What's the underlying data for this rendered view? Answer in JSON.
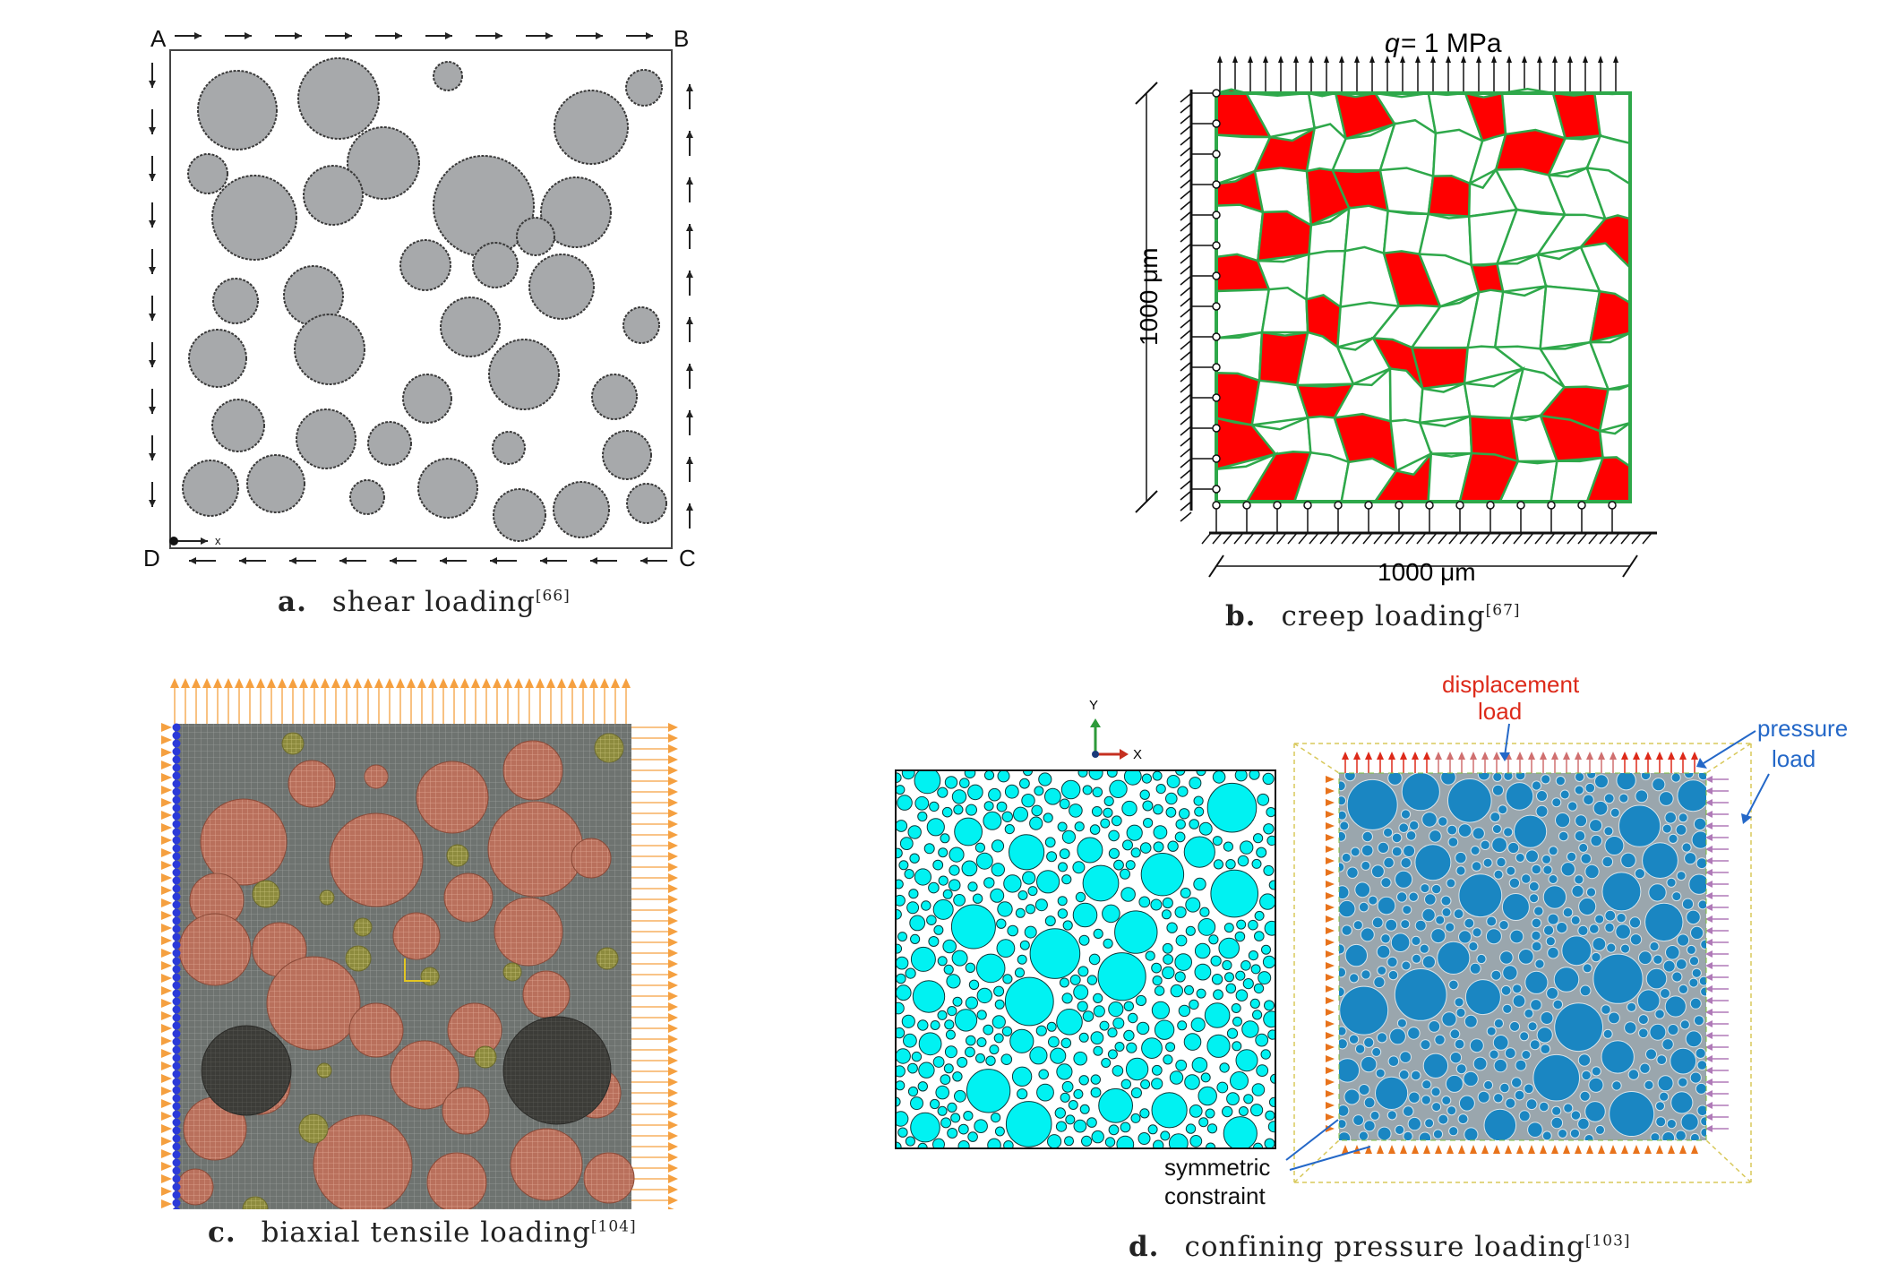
{
  "panel_a": {
    "corners": {
      "A": "A",
      "B": "B",
      "C": "C",
      "D": "D"
    },
    "axis_mark": "x",
    "caption_letter": "a.",
    "caption_text": "shear loading",
    "caption_ref": "[66]",
    "colors": {
      "particle": "#a7a9ab",
      "outline": "#3a3a3a"
    }
  },
  "panel_b": {
    "load_label_var": "q",
    "load_label_rest": "= 1 MPa",
    "height_label": "1000 μm",
    "width_label": "1000 μm",
    "caption_letter": "b.",
    "caption_text": "creep loading",
    "caption_ref": "[67]",
    "colors": {
      "grain_edge": "#2ea84a",
      "particle": "#ff0000"
    }
  },
  "panel_c": {
    "caption_letter": "c.",
    "caption_text": "biaxial tensile loading",
    "caption_ref": "[104]",
    "colors": {
      "matrix": "#6e7370",
      "large": "#b9705c",
      "small": "#8d8b3e",
      "void": "#3c3c38",
      "load": "#f5a040",
      "constraint": "#2b3ad8"
    }
  },
  "panel_d": {
    "triad": {
      "y": "Y",
      "x": "X"
    },
    "displacement_line1": "displacement",
    "displacement_line2": "load",
    "pressure_line1": "pressure",
    "pressure_line2": "load",
    "constraint_line1": "symmetric",
    "constraint_line2": "constraint",
    "caption_letter": "d.",
    "caption_text": "confining pressure loading",
    "caption_ref": "[103]",
    "colors": {
      "left_particle": "#00f2f2",
      "right_particle": "#1a86c2",
      "displacement": "#dd2a1a",
      "pressure": "#2468c8"
    }
  }
}
